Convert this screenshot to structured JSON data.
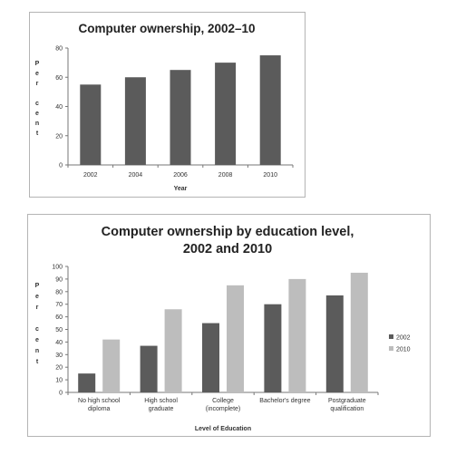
{
  "chart_data": [
    {
      "type": "bar",
      "title": "Computer ownership, 2002–10",
      "xlabel": "Year",
      "ylabel": "Per cent",
      "ylabel_stacked": [
        "P",
        "e",
        "r",
        "",
        "c",
        "e",
        "n",
        "t"
      ],
      "categories": [
        "2002",
        "2004",
        "2006",
        "2008",
        "2010"
      ],
      "values": [
        55,
        60,
        65,
        70,
        75
      ],
      "ylim": [
        0,
        80
      ],
      "yticks": [
        0,
        20,
        40,
        60,
        80
      ],
      "grid": false,
      "colors": {
        "bar": "#5b5b5b"
      }
    },
    {
      "type": "bar",
      "title": "Computer ownership by education level,",
      "title_line2": "2002 and 2010",
      "xlabel": "Level of Education",
      "ylabel": "Per cent",
      "ylabel_stacked": [
        "P",
        "e",
        "r",
        "",
        "c",
        "e",
        "n",
        "t"
      ],
      "categories": [
        [
          "No high school",
          "diploma"
        ],
        [
          "High school",
          "graduate"
        ],
        [
          "College",
          "(incomplete)"
        ],
        [
          "Bachelor's degree"
        ],
        [
          "Postgraduate",
          "qualification"
        ]
      ],
      "series": [
        {
          "name": "2002",
          "values": [
            15,
            37,
            55,
            70,
            77
          ],
          "color": "#5b5b5b"
        },
        {
          "name": "2010",
          "values": [
            42,
            66,
            85,
            90,
            95
          ],
          "color": "#bdbdbd"
        }
      ],
      "ylim": [
        0,
        100
      ],
      "yticks": [
        0,
        10,
        20,
        30,
        40,
        50,
        60,
        70,
        80,
        90,
        100
      ],
      "grid": false,
      "legend": "right"
    }
  ]
}
